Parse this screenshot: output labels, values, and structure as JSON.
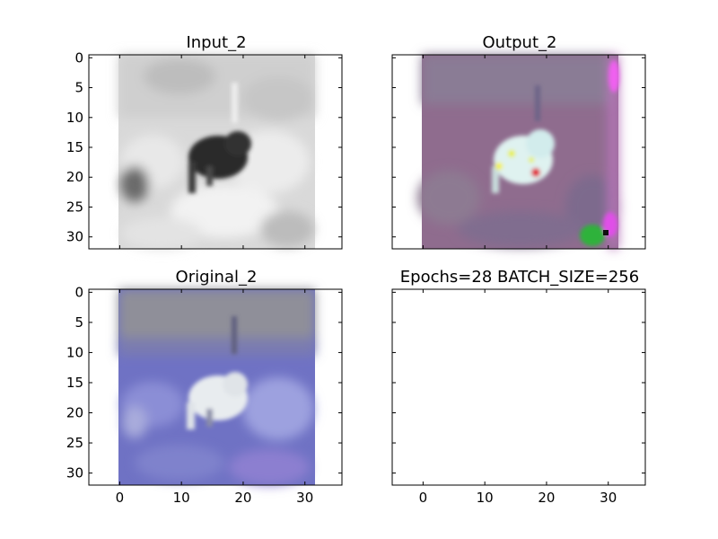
{
  "chart_data": [
    {
      "type": "image",
      "title": "Input_2",
      "image_description": "grayscale 32x32 image of a dark ostrich-like bird on a light background",
      "xlim": [
        -5,
        36
      ],
      "ylim": [
        32,
        -0.5
      ],
      "xticks": [
        0,
        10,
        20,
        30
      ],
      "yticks": [
        0,
        5,
        10,
        15,
        20,
        25,
        30
      ],
      "show_xtick_labels": false,
      "show_ytick_labels": true,
      "colors": {
        "background": "#d9d9d9",
        "subject": "#2a2a2a",
        "light": "#f2f2f2",
        "mid": "#a8a8a8"
      }
    },
    {
      "type": "image",
      "title": "Output_2",
      "image_description": "colorized 32x32 output, purple/mauve background with pale cyan-white bird and colored noise dots",
      "xlim": [
        -5,
        36
      ],
      "ylim": [
        32,
        -0.5
      ],
      "xticks": [
        0,
        10,
        20,
        30
      ],
      "yticks": [
        0,
        5,
        10,
        15,
        20,
        25,
        30
      ],
      "show_xtick_labels": false,
      "show_ytick_labels": false,
      "colors": {
        "background": "#8f6c8e",
        "top": "#8a7c95",
        "subject": "#dff2f0",
        "accent_yellow": "#f4f000",
        "accent_red": "#e00020",
        "edge_green": "#2fb23a",
        "edge_magenta": "#e050e8"
      }
    },
    {
      "type": "image",
      "title": "Original_2",
      "image_description": "original 32x32 color image, grey sky over blue-violet ground with white bird",
      "xlim": [
        -5,
        36
      ],
      "ylim": [
        32,
        -0.5
      ],
      "xticks": [
        0,
        10,
        20,
        30
      ],
      "yticks": [
        0,
        5,
        10,
        15,
        20,
        25,
        30
      ],
      "show_xtick_labels": true,
      "show_ytick_labels": true,
      "colors": {
        "sky": "#8f8f99",
        "ground": "#6f72c4",
        "ground_light": "#9da1df",
        "subject": "#e8ecef"
      }
    },
    {
      "type": "empty",
      "title": "Epochs=28 BATCH_SIZE=256",
      "xlim": [
        -5,
        36
      ],
      "ylim": [
        32,
        -0.5
      ],
      "xticks": [
        0,
        10,
        20,
        30
      ],
      "yticks": [
        0,
        5,
        10,
        15,
        20,
        25,
        30
      ],
      "show_xtick_labels": true,
      "show_ytick_labels": false
    }
  ]
}
